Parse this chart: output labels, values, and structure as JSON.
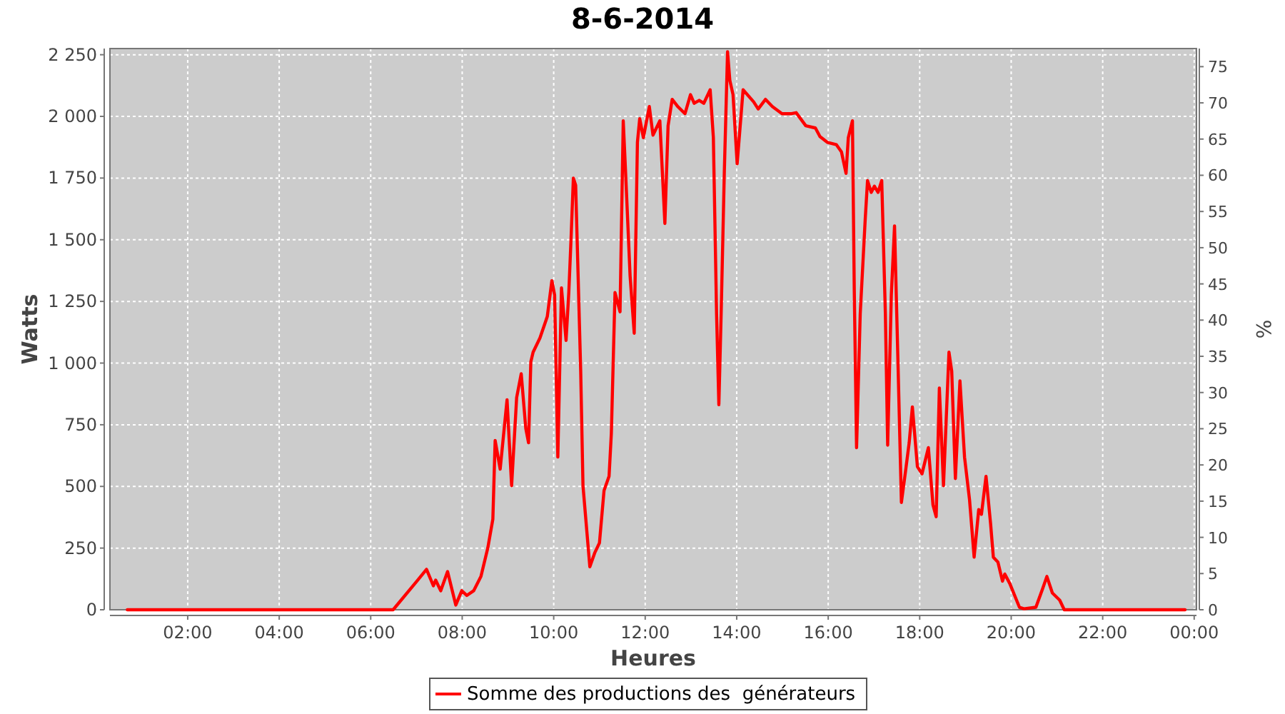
{
  "chart_data": {
    "type": "line",
    "title": "8-6-2014",
    "xlabel": "Heures",
    "ylabel": "Watts",
    "y2label": "%",
    "xlim": [
      0.3,
      24.05
    ],
    "ylim": [
      0,
      2275
    ],
    "y2lim": [
      0,
      77.5
    ],
    "xticks": [
      {
        "value": 2,
        "label": "02:00"
      },
      {
        "value": 4,
        "label": "04:00"
      },
      {
        "value": 6,
        "label": "06:00"
      },
      {
        "value": 8,
        "label": "08:00"
      },
      {
        "value": 10,
        "label": "10:00"
      },
      {
        "value": 12,
        "label": "12:00"
      },
      {
        "value": 14,
        "label": "14:00"
      },
      {
        "value": 16,
        "label": "16:00"
      },
      {
        "value": 18,
        "label": "18:00"
      },
      {
        "value": 20,
        "label": "20:00"
      },
      {
        "value": 22,
        "label": "22:00"
      },
      {
        "value": 24,
        "label": "00:00"
      }
    ],
    "yticks": [
      0,
      250,
      500,
      750,
      {
        "value": 1000,
        "label": "1 000"
      },
      {
        "value": 1250,
        "label": "1 250"
      },
      {
        "value": 1500,
        "label": "1 500"
      },
      {
        "value": 1750,
        "label": "1 750"
      },
      {
        "value": 2000,
        "label": "2 000"
      },
      {
        "value": 2250,
        "label": "2 250"
      }
    ],
    "y2ticks": [
      0,
      5,
      10,
      15,
      20,
      25,
      30,
      35,
      40,
      45,
      50,
      55,
      60,
      65,
      70,
      75
    ],
    "grid": true,
    "legend": "bottom",
    "line_style": "solid",
    "series": [
      {
        "name": "Somme des productions des  générateurs",
        "color": "#ff0000",
        "x": [
          0.68,
          6.49,
          7.01,
          7.22,
          7.37,
          7.42,
          7.53,
          7.68,
          7.86,
          7.99,
          8.1,
          8.25,
          8.41,
          8.56,
          8.67,
          8.72,
          8.83,
          8.98,
          9.08,
          9.19,
          9.29,
          9.39,
          9.45,
          9.5,
          9.55,
          9.7,
          9.86,
          9.96,
          10.02,
          10.09,
          10.17,
          10.27,
          10.33,
          10.38,
          10.43,
          10.48,
          10.59,
          10.64,
          10.79,
          10.9,
          11.0,
          11.1,
          11.21,
          11.26,
          11.34,
          11.45,
          11.52,
          11.57,
          11.67,
          11.76,
          11.83,
          11.88,
          11.96,
          12.09,
          12.17,
          12.32,
          12.43,
          12.5,
          12.59,
          12.71,
          12.87,
          12.99,
          13.07,
          13.18,
          13.28,
          13.42,
          13.49,
          13.56,
          13.61,
          13.66,
          13.73,
          13.8,
          13.85,
          13.92,
          14.01,
          14.14,
          14.37,
          14.47,
          14.63,
          14.78,
          14.99,
          15.2,
          15.3,
          15.51,
          15.72,
          15.82,
          15.98,
          16.18,
          16.29,
          16.39,
          16.44,
          16.53,
          16.57,
          16.62,
          16.7,
          16.81,
          16.86,
          16.94,
          17.01,
          17.09,
          17.17,
          17.25,
          17.3,
          17.38,
          17.45,
          17.53,
          17.6,
          17.69,
          17.77,
          17.84,
          17.95,
          18.05,
          18.19,
          18.29,
          18.36,
          18.43,
          18.52,
          18.64,
          18.7,
          18.78,
          18.88,
          18.98,
          19.09,
          19.19,
          19.29,
          19.35,
          19.45,
          19.55,
          19.61,
          19.71,
          19.81,
          19.86,
          19.97,
          20.18,
          20.28,
          20.54,
          20.69,
          20.78,
          20.9,
          21.06,
          21.16,
          23.8
        ],
        "values": [
          0,
          0,
          116,
          164,
          97,
          120,
          77,
          155,
          19,
          77,
          58,
          77,
          135,
          251,
          367,
          686,
          570,
          851,
          503,
          860,
          957,
          735,
          677,
          1005,
          1044,
          1102,
          1189,
          1334,
          1276,
          619,
          1305,
          1092,
          1286,
          1508,
          1750,
          1721,
          967,
          503,
          174,
          232,
          271,
          483,
          541,
          715,
          1286,
          1208,
          1982,
          1779,
          1353,
          1121,
          1895,
          1991,
          1914,
          2040,
          1924,
          1982,
          1566,
          1962,
          2069,
          2040,
          2011,
          2088,
          2053,
          2065,
          2053,
          2108,
          1914,
          1199,
          831,
          1199,
          1779,
          2262,
          2146,
          2088,
          1808,
          2108,
          2059,
          2030,
          2069,
          2040,
          2011,
          2011,
          2015,
          1962,
          1953,
          1918,
          1895,
          1885,
          1856,
          1769,
          1914,
          1982,
          1295,
          657,
          1199,
          1586,
          1740,
          1692,
          1717,
          1692,
          1740,
          1199,
          667,
          1276,
          1556,
          967,
          435,
          561,
          677,
          822,
          580,
          551,
          657,
          425,
          377,
          899,
          503,
          1044,
          967,
          532,
          928,
          619,
          445,
          213,
          406,
          387,
          541,
          348,
          213,
          193,
          116,
          145,
          106,
          10,
          4,
          10,
          87,
          135,
          68,
          39,
          0,
          0
        ]
      }
    ]
  }
}
